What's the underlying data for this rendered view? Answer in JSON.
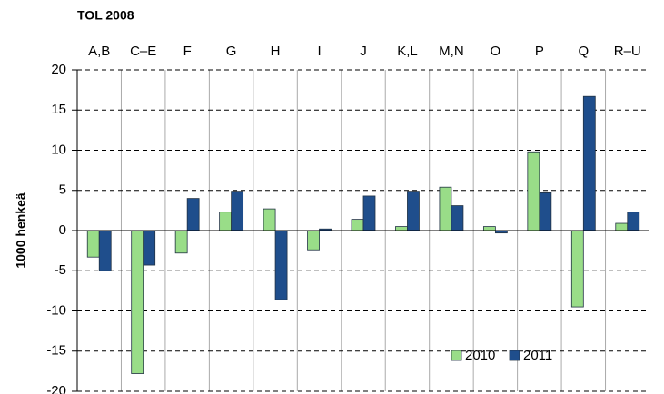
{
  "chart_data": {
    "type": "bar",
    "title": "TOL 2008",
    "y_label": "1000 henkeä",
    "categories": [
      "A,B",
      "C–E",
      "F",
      "G",
      "H",
      "I",
      "J",
      "K,L",
      "M,N",
      "O",
      "P",
      "Q",
      "R–U"
    ],
    "series": [
      {
        "name": "2010",
        "color": "#99dd88",
        "values": [
          -3.3,
          -17.8,
          -2.8,
          2.3,
          2.7,
          -2.4,
          1.4,
          0.5,
          5.4,
          0.5,
          9.8,
          -9.5,
          0.9
        ]
      },
      {
        "name": "2011",
        "color": "#1f4e8c",
        "values": [
          -5.0,
          -4.3,
          4.0,
          4.9,
          -8.6,
          0.2,
          4.3,
          4.9,
          3.1,
          -0.3,
          4.7,
          16.7,
          2.3
        ]
      }
    ],
    "ylim": [
      -20,
      20
    ],
    "yticks": [
      -20,
      -15,
      -10,
      -5,
      0,
      5,
      10,
      15,
      20
    ],
    "grid": true,
    "legend": "lower right"
  }
}
